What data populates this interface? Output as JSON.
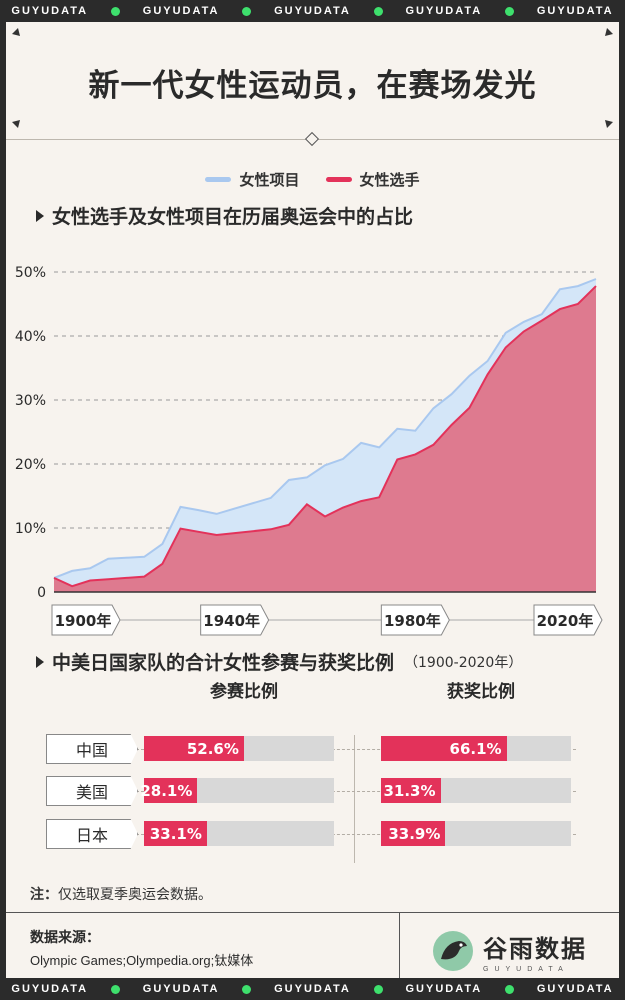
{
  "ticker": {
    "word": "GUYUDATA"
  },
  "title": "新一代女性运动员，在赛场发光",
  "legend": {
    "items": [
      {
        "label": "女性项目",
        "color": "#a9c8ef"
      },
      {
        "label": "女性选手",
        "color": "#e3325a"
      }
    ]
  },
  "section1": {
    "title": "女性选手及女性项目在历届奥运会中的占比"
  },
  "chart_data": [
    {
      "type": "area",
      "title": "女性选手及女性项目在历届奥运会中的占比",
      "ylim": [
        0,
        50
      ],
      "yticks": [
        "0",
        "10%",
        "20%",
        "30%",
        "40%",
        "50%"
      ],
      "xticks": [
        "1900年",
        "1940年",
        "1980年",
        "2020年"
      ],
      "x": [
        1900,
        1904,
        1908,
        1912,
        1920,
        1924,
        1928,
        1932,
        1936,
        1948,
        1952,
        1956,
        1960,
        1964,
        1968,
        1972,
        1976,
        1980,
        1984,
        1988,
        1992,
        1996,
        2000,
        2004,
        2008,
        2012,
        2016,
        2020
      ],
      "series": [
        {
          "name": "女性项目",
          "color": "#a9c8ef",
          "values": [
            2.2,
            3.3,
            3.7,
            5.2,
            5.5,
            7.5,
            13.3,
            12.8,
            12.2,
            14.7,
            17.5,
            17.9,
            19.8,
            20.8,
            23.3,
            22.6,
            25.5,
            25.2,
            28.7,
            30.9,
            33.8,
            36.1,
            40.5,
            42.2,
            43.4,
            47.3,
            47.8,
            48.9
          ]
        },
        {
          "name": "女性选手",
          "color": "#e3325a",
          "values": [
            2.2,
            0.9,
            1.8,
            2.0,
            2.4,
            4.4,
            9.9,
            9.4,
            8.9,
            9.8,
            10.5,
            13.7,
            11.8,
            13.2,
            14.2,
            14.8,
            20.7,
            21.5,
            23.0,
            26.1,
            28.8,
            34.0,
            38.2,
            40.7,
            42.4,
            44.2,
            45.0,
            47.8
          ]
        }
      ]
    },
    {
      "type": "bar",
      "title": "中美日国家队的合计女性参赛与获奖比例",
      "subtitle": "（1900-2020年）",
      "categories": [
        "中国",
        "美国",
        "日本"
      ],
      "series": [
        {
          "name": "参赛比例",
          "values": [
            52.6,
            28.1,
            33.1
          ],
          "labels": [
            "52.6%",
            "28.1%",
            "33.1%"
          ]
        },
        {
          "name": "获奖比例",
          "values": [
            66.1,
            31.3,
            33.9
          ],
          "labels": [
            "66.1%",
            "31.3%",
            "33.9%"
          ]
        }
      ],
      "xlim": [
        0,
        100
      ]
    }
  ],
  "section2": {
    "title": "中美日国家队的合计女性参赛与获奖比例",
    "subtitle": "（1900-2020年）"
  },
  "bars": {
    "participation_head": "参赛比例",
    "award_head": "获奖比例"
  },
  "note": {
    "label": "注：",
    "text": "仅选取夏季奥运会数据。"
  },
  "source": {
    "label": "数据来源：",
    "text": "Olympic Games;Olympedia.org;钛媒体"
  },
  "logo": {
    "name": "谷雨数据",
    "sub": "GUYUDATA"
  },
  "colors": {
    "accent": "#e3325a",
    "area_blue": "#a9c8ef",
    "bg": "#f7f3ee",
    "frame": "#2b2b2b",
    "ticker_dot": "#3ee06d"
  }
}
